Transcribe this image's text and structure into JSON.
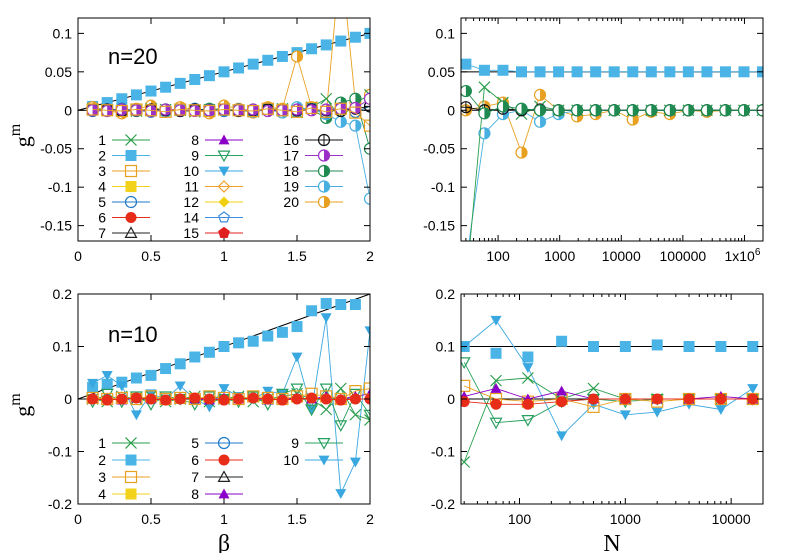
{
  "colors": {
    "c1": "#2a9d4b",
    "c2": "#4ab4e6",
    "c3": "#e8a020",
    "c4": "#f2d21b",
    "c5": "#1f78c8",
    "c6": "#e82c1a",
    "c7": "#222222",
    "c8": "#8b00c8",
    "c9": "#28a060",
    "c10": "#3aa8e0",
    "c11": "#f0a030",
    "c12": "#f0d010",
    "c14": "#3c8ce0",
    "c15": "#e02020",
    "c16": "#111111",
    "c17": "#9b30c8",
    "c18": "#1f8a50",
    "c19": "#48b0e0",
    "c20": "#e8a020"
  },
  "chart_data": [
    {
      "type": "line",
      "id": "tl",
      "annotation": "n=20",
      "xlabel": "",
      "ylabel": "g^m",
      "xlim": [
        0,
        2
      ],
      "ylim": [
        -0.17,
        0.12
      ],
      "xticks": [
        "0",
        "0.5",
        "1",
        "1.5",
        "2"
      ],
      "yticks": [
        "0.1",
        "0.05",
        "0",
        "-0.05",
        "-0.1",
        "-0.15"
      ],
      "x": [
        0.1,
        0.2,
        0.3,
        0.4,
        0.5,
        0.6,
        0.7,
        0.8,
        0.9,
        1.0,
        1.1,
        1.2,
        1.3,
        1.4,
        1.5,
        1.6,
        1.7,
        1.8,
        1.9,
        2.0
      ],
      "series": [
        {
          "name": "2",
          "values": [
            0.005,
            0.01,
            0.015,
            0.02,
            0.025,
            0.03,
            0.035,
            0.04,
            0.045,
            0.05,
            0.055,
            0.06,
            0.065,
            0.07,
            0.075,
            0.08,
            0.085,
            0.09,
            0.095,
            0.1
          ]
        },
        {
          "name": "20",
          "values": [
            0.004,
            0.0,
            -0.004,
            0.002,
            0.006,
            -0.002,
            0.004,
            0.001,
            -0.004,
            0.006,
            0.002,
            -0.003,
            0.004,
            0.002,
            0.07,
            0.004,
            -0.005,
            0.2,
            0.01,
            0.02
          ]
        },
        {
          "name": "1",
          "values": [
            0.002,
            0.001,
            0.0,
            -0.001,
            0.002,
            0.001,
            0.0,
            -0.002,
            0.001,
            0.002,
            0.0,
            -0.002,
            0.001,
            0.002,
            -0.003,
            0.004,
            0.015,
            -0.01,
            0.01,
            0.02
          ]
        },
        {
          "name": "18",
          "values": [
            0.001,
            0.0,
            0.002,
            -0.001,
            0.0,
            0.001,
            -0.001,
            0.0,
            0.002,
            0.0,
            -0.001,
            0.001,
            0.0,
            -0.002,
            0.003,
            0.001,
            -0.01,
            0.01,
            0.015,
            -0.05
          ]
        },
        {
          "name": "19",
          "values": [
            0.0,
            -0.001,
            0.0,
            0.001,
            0.0,
            -0.002,
            0.001,
            0.0,
            -0.001,
            0.001,
            0.0,
            -0.002,
            0.001,
            -0.003,
            0.004,
            0.001,
            -0.005,
            -0.015,
            -0.02,
            -0.115
          ]
        },
        {
          "name": "5",
          "values": [
            -0.001,
            0.0,
            0.002,
            0.0,
            -0.002,
            0.001,
            -0.001,
            0.002,
            0.0,
            -0.001,
            0.001,
            -0.001,
            0.002,
            0.0,
            -0.001,
            0.002,
            -0.003,
            0.003,
            -0.002,
            0.005
          ]
        },
        {
          "name": "16",
          "values": [
            0.0,
            0.001,
            -0.001,
            0.0,
            0.001,
            0.0,
            -0.001,
            0.001,
            0.0,
            0.001,
            -0.001,
            0.0,
            0.001,
            0.0,
            0.0,
            0.001,
            0.0,
            -0.001,
            0.002,
            0.005
          ]
        },
        {
          "name": "17",
          "values": [
            0.0,
            -0.001,
            0.001,
            0.0,
            -0.001,
            0.001,
            0.0,
            -0.001,
            0.0,
            0.001,
            0.0,
            0.001,
            -0.001,
            0.0,
            0.001,
            0.0,
            0.001,
            0.002,
            0.003,
            0.015
          ]
        },
        {
          "name": "3",
          "values": [
            0.001,
            0.0,
            -0.001,
            0.001,
            0.0,
            -0.002,
            0.001,
            0.0,
            -0.001,
            0.001,
            0.0,
            -0.001,
            0.002,
            0.0,
            -0.002,
            0.003,
            -0.002,
            0.002,
            -0.003,
            -0.02
          ]
        }
      ],
      "legend": [
        {
          "label": "1",
          "marker": "x",
          "color": "c1"
        },
        {
          "label": "2",
          "marker": "sqf",
          "color": "c2"
        },
        {
          "label": "3",
          "marker": "sqo",
          "color": "c3"
        },
        {
          "label": "4",
          "marker": "sqf",
          "color": "c4"
        },
        {
          "label": "5",
          "marker": "co",
          "color": "c5"
        },
        {
          "label": "6",
          "marker": "cf",
          "color": "c6"
        },
        {
          "label": "7",
          "marker": "to",
          "color": "c7"
        },
        {
          "label": "8",
          "marker": "tf",
          "color": "c8"
        },
        {
          "label": "9",
          "marker": "tdo",
          "color": "c9"
        },
        {
          "label": "10",
          "marker": "tdf",
          "color": "c10"
        },
        {
          "label": "11",
          "marker": "do",
          "color": "c11"
        },
        {
          "label": "12",
          "marker": "df",
          "color": "c12"
        },
        {
          "label": "14",
          "marker": "po",
          "color": "c14"
        },
        {
          "label": "15",
          "marker": "pf",
          "color": "c15"
        },
        {
          "label": "16",
          "marker": "cross",
          "color": "c16"
        },
        {
          "label": "17",
          "marker": "half",
          "color": "c17"
        },
        {
          "label": "18",
          "marker": "half",
          "color": "c18"
        },
        {
          "label": "19",
          "marker": "half",
          "color": "c19"
        },
        {
          "label": "20",
          "marker": "half",
          "color": "c20"
        }
      ]
    },
    {
      "type": "line",
      "id": "tr",
      "annotation": "",
      "xlabel": "",
      "ylabel": "",
      "xscale": "log",
      "xlim": [
        25,
        2000000
      ],
      "ylim": [
        -0.17,
        0.12
      ],
      "xticks": [
        "100",
        "1000",
        "10000",
        "100000",
        "1x10^6"
      ],
      "yticks": [
        "0.1",
        "0.05",
        "0",
        "-0.05",
        "-0.1",
        "-0.15"
      ],
      "x": [
        30,
        60,
        120,
        240,
        480,
        960,
        1920,
        3840,
        7680,
        15360,
        30720,
        61440,
        122880,
        245760,
        491520,
        983040,
        1966080
      ],
      "series": [
        {
          "name": "2",
          "values": [
            0.06,
            0.052,
            0.052,
            0.05,
            0.05,
            0.05,
            0.05,
            0.05,
            0.05,
            0.05,
            0.05,
            0.05,
            0.05,
            0.05,
            0.05,
            0.05,
            0.05
          ]
        },
        {
          "name": "20",
          "values": [
            0.0,
            0.005,
            0.01,
            -0.055,
            0.02,
            0.0,
            -0.008,
            -0.005,
            0.0,
            -0.012,
            -0.002,
            -0.005,
            0.0,
            -0.002,
            0.0,
            0.0,
            0.0
          ]
        },
        {
          "name": "19",
          "values": [
            -0.2,
            -0.03,
            -0.005,
            0.0,
            -0.015,
            -0.005,
            0.0,
            0.0,
            0.0,
            0.0,
            0.0,
            0.0,
            0.0,
            0.0,
            0.0,
            0.0,
            0.0
          ]
        },
        {
          "name": "1",
          "values": [
            -0.23,
            0.03,
            0.01,
            -0.005,
            0.005,
            0.0,
            0.0,
            0.0,
            0.0,
            0.0,
            0.0,
            0.0,
            0.0,
            0.0,
            0.0,
            0.0,
            0.0
          ]
        },
        {
          "name": "16",
          "values": [
            0.004,
            0.0,
            0.002,
            0.0,
            0.001,
            0.0,
            0.0,
            0.0,
            0.0,
            0.0,
            0.0,
            0.0,
            0.0,
            0.0,
            0.0,
            0.0,
            0.0
          ]
        },
        {
          "name": "18",
          "values": [
            0.025,
            -0.004,
            0.005,
            0.002,
            0.0,
            0.0,
            0.0,
            0.0,
            0.0,
            0.0,
            0.0,
            0.0,
            0.0,
            0.0,
            0.0,
            0.0,
            0.0
          ]
        }
      ]
    },
    {
      "type": "line",
      "id": "bl",
      "annotation": "n=10",
      "xlabel": "β",
      "ylabel": "g^m",
      "xlim": [
        0,
        2
      ],
      "ylim": [
        -0.2,
        0.2
      ],
      "xticks": [
        "0",
        "0.5",
        "1",
        "1.5",
        "2"
      ],
      "yticks": [
        "0.2",
        "0.1",
        "0",
        "-0.1",
        "-0.2"
      ],
      "x": [
        0.1,
        0.2,
        0.3,
        0.4,
        0.5,
        0.6,
        0.7,
        0.8,
        0.9,
        1.0,
        1.1,
        1.2,
        1.3,
        1.4,
        1.5,
        1.6,
        1.7,
        1.8,
        1.9,
        2.0
      ],
      "series": [
        {
          "name": "2",
          "values": [
            0.022,
            0.028,
            0.032,
            0.04,
            0.045,
            0.058,
            0.067,
            0.08,
            0.089,
            0.1,
            0.107,
            0.11,
            0.12,
            0.127,
            0.138,
            0.168,
            0.182,
            0.18,
            0.18,
            null
          ]
        },
        {
          "name": "10",
          "values": [
            0.03,
            0.045,
            0.025,
            -0.03,
            0.01,
            0.0,
            0.025,
            0.0,
            -0.015,
            0.02,
            0.005,
            0.0,
            0.015,
            0.01,
            0.08,
            -0.02,
            0.155,
            -0.18,
            -0.12,
            0.13
          ]
        },
        {
          "name": "9",
          "values": [
            -0.005,
            0.01,
            -0.005,
            0.005,
            -0.01,
            0.005,
            0.0,
            -0.01,
            0.005,
            0.0,
            -0.005,
            0.005,
            -0.01,
            0.01,
            0.02,
            -0.02,
            0.02,
            -0.05,
            0.01,
            -0.03
          ]
        },
        {
          "name": "1",
          "values": [
            0.0,
            -0.005,
            0.005,
            0.0,
            0.005,
            -0.005,
            0.0,
            0.005,
            -0.005,
            0.0,
            0.005,
            -0.005,
            0.0,
            0.005,
            0.01,
            0.0,
            -0.02,
            0.02,
            -0.03,
            -0.04
          ]
        },
        {
          "name": "8",
          "values": [
            0.0,
            0.002,
            -0.002,
            0.002,
            0.0,
            -0.002,
            0.002,
            0.0,
            -0.002,
            0.002,
            0.0,
            0.002,
            -0.002,
            0.0,
            0.002,
            0.0,
            0.005,
            0.0,
            0.005,
            0.01
          ]
        },
        {
          "name": "3",
          "values": [
            0.002,
            0.0,
            0.002,
            0.0,
            0.005,
            0.0,
            0.002,
            0.0,
            0.005,
            0.002,
            0.0,
            0.005,
            0.002,
            0.0,
            0.005,
            0.01,
            0.005,
            0.0,
            0.015,
            0.02
          ]
        },
        {
          "name": "6",
          "values": [
            0.0,
            -0.002,
            0.0,
            0.002,
            0.0,
            -0.002,
            0.0,
            0.002,
            0.0,
            -0.002,
            0.0,
            0.002,
            0.0,
            -0.002,
            0.0,
            0.002,
            0.0,
            -0.002,
            0.0,
            0.0
          ]
        }
      ],
      "legend": [
        {
          "label": "1",
          "marker": "x",
          "color": "c1"
        },
        {
          "label": "2",
          "marker": "sqf",
          "color": "c2"
        },
        {
          "label": "3",
          "marker": "sqo",
          "color": "c3"
        },
        {
          "label": "4",
          "marker": "sqf",
          "color": "c4"
        },
        {
          "label": "5",
          "marker": "co",
          "color": "c5"
        },
        {
          "label": "6",
          "marker": "cf",
          "color": "c6"
        },
        {
          "label": "7",
          "marker": "to",
          "color": "c7"
        },
        {
          "label": "8",
          "marker": "tf",
          "color": "c8"
        },
        {
          "label": "9",
          "marker": "tdo",
          "color": "c9"
        },
        {
          "label": "10",
          "marker": "tdf",
          "color": "c10"
        }
      ]
    },
    {
      "type": "line",
      "id": "br",
      "annotation": "",
      "xlabel": "N",
      "ylabel": "",
      "xscale": "log",
      "xlim": [
        28,
        20000
      ],
      "ylim": [
        -0.2,
        0.2
      ],
      "xticks": [
        "100",
        "1000",
        "10000"
      ],
      "yticks": [
        "0.2",
        "0.1",
        "0",
        "-0.1",
        "-0.2"
      ],
      "x": [
        30,
        60,
        120,
        250,
        500,
        1000,
        2000,
        4000,
        8000,
        16000
      ],
      "series": [
        {
          "name": "2",
          "values": [
            0.1,
            0.087,
            0.08,
            0.11,
            0.1,
            0.1,
            0.103,
            0.1,
            0.1,
            0.1
          ]
        },
        {
          "name": "10",
          "values": [
            0.1,
            0.15,
            0.06,
            -0.07,
            -0.01,
            -0.03,
            -0.025,
            -0.01,
            -0.02,
            0.02
          ]
        },
        {
          "name": "9",
          "values": [
            0.07,
            -0.045,
            -0.04,
            -0.005,
            0.0,
            -0.005,
            0.0,
            0.0,
            0.0,
            0.0
          ]
        },
        {
          "name": "1",
          "values": [
            -0.12,
            0.035,
            0.04,
            0.0,
            0.02,
            0.0,
            0.0,
            0.0,
            0.0,
            0.0
          ]
        },
        {
          "name": "3",
          "values": [
            0.025,
            0.0,
            -0.005,
            0.0,
            -0.015,
            0.0,
            -0.005,
            0.0,
            0.0,
            0.0
          ]
        },
        {
          "name": "8",
          "values": [
            0.005,
            0.02,
            0.0,
            0.015,
            0.0,
            0.0,
            0.0,
            0.0,
            0.005,
            0.0
          ]
        },
        {
          "name": "6",
          "values": [
            -0.005,
            -0.01,
            -0.01,
            -0.005,
            0.0,
            0.0,
            0.0,
            0.0,
            0.0,
            0.0
          ]
        }
      ]
    }
  ]
}
